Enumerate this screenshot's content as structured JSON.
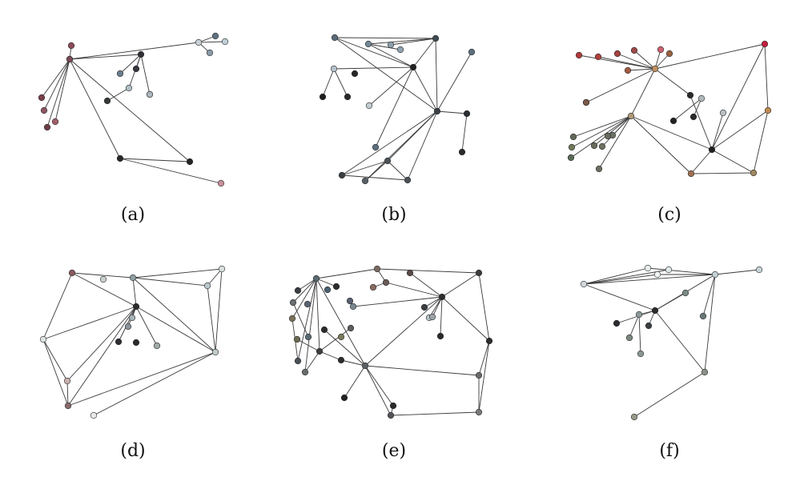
{
  "panels": [
    {
      "id": "a",
      "label": "(a)",
      "nodes": [
        {
          "id": "n1",
          "color": "#8b4a56"
        },
        {
          "id": "n2",
          "color": "#c88a95"
        },
        {
          "id": "n3",
          "color": "#7a3d48"
        },
        {
          "id": "n4",
          "color": "#8d5560"
        },
        {
          "id": "n5",
          "color": "#a0606a"
        },
        {
          "id": "n6",
          "color": "#6d3d44"
        },
        {
          "id": "n7",
          "color": "#303038"
        },
        {
          "id": "n8",
          "color": "#c6d0d6"
        },
        {
          "id": "n9",
          "color": "#8a9aa8"
        },
        {
          "id": "n10",
          "color": "#5e7384"
        },
        {
          "id": "n11",
          "color": "#c0d0d8"
        },
        {
          "id": "n12",
          "color": "#6a7e8e"
        },
        {
          "id": "n13",
          "color": "#383440"
        },
        {
          "id": "n14",
          "color": "#b0c0c8"
        },
        {
          "id": "n15",
          "color": "#8a9aa6"
        },
        {
          "id": "n16",
          "color": "#353838"
        },
        {
          "id": "n17",
          "color": "#aab6bd"
        },
        {
          "id": "n18",
          "color": "#26282a"
        },
        {
          "id": "n19",
          "color": "#222426"
        },
        {
          "id": "n20",
          "color": "#c8909a"
        },
        {
          "id": "n21",
          "color": "#7a4a56"
        }
      ]
    },
    {
      "id": "b",
      "label": "(b)",
      "nodes": [
        {
          "id": "n1",
          "color": "#5a6a78"
        },
        {
          "id": "n2",
          "color": "#708898"
        },
        {
          "id": "n3",
          "color": "#90a4b2"
        },
        {
          "id": "n4",
          "color": "#3e4a52"
        },
        {
          "id": "n5",
          "color": "#5a7080"
        },
        {
          "id": "n6",
          "color": "#202224"
        },
        {
          "id": "n7",
          "color": "#b4c2cc"
        },
        {
          "id": "n8",
          "color": "#202020"
        },
        {
          "id": "n9",
          "color": "#2a2a2a"
        },
        {
          "id": "n10",
          "color": "#262626"
        },
        {
          "id": "n11",
          "color": "#c0ccd2"
        },
        {
          "id": "n12",
          "color": "#8aa0ac"
        },
        {
          "id": "n13",
          "color": "#5a7082"
        },
        {
          "id": "n14",
          "color": "#3a4046"
        },
        {
          "id": "n15",
          "color": "#2a2e32"
        },
        {
          "id": "n16",
          "color": "#282a2c"
        },
        {
          "id": "n17",
          "color": "#4a5258"
        },
        {
          "id": "n18",
          "color": "#5a6066"
        },
        {
          "id": "n19",
          "color": "#3a3e42"
        },
        {
          "id": "n20",
          "color": "#4a5056"
        }
      ]
    },
    {
      "id": "c",
      "label": "(c)",
      "nodes": [
        {
          "id": "n1",
          "color": "#b03a3a"
        },
        {
          "id": "n2",
          "color": "#b0403a"
        },
        {
          "id": "n3",
          "color": "#a84040"
        },
        {
          "id": "n4",
          "color": "#a04848"
        },
        {
          "id": "n5",
          "color": "#a05a40"
        },
        {
          "id": "n6",
          "color": "#d06070"
        },
        {
          "id": "n7",
          "color": "#9a6040"
        },
        {
          "id": "n8",
          "color": "#c09060"
        },
        {
          "id": "n9",
          "color": "#a07848"
        },
        {
          "id": "n10",
          "color": "#7a5848"
        },
        {
          "id": "n11",
          "color": "#b09878"
        },
        {
          "id": "n12",
          "color": "#606858"
        },
        {
          "id": "n13",
          "color": "#707858"
        },
        {
          "id": "n14",
          "color": "#6a6a5a"
        },
        {
          "id": "n15",
          "color": "#707060"
        },
        {
          "id": "n16",
          "color": "#5a6a58"
        },
        {
          "id": "n17",
          "color": "#6a7266"
        },
        {
          "id": "n18",
          "color": "#6a6e60"
        },
        {
          "id": "n19",
          "color": "#2a2a2a"
        },
        {
          "id": "n20",
          "color": "#b0b8bc"
        },
        {
          "id": "n21",
          "color": "#2a2a2a"
        },
        {
          "id": "n22",
          "color": "#b8c0c4"
        },
        {
          "id": "n23",
          "color": "#222222"
        },
        {
          "id": "n24",
          "color": "#202020"
        },
        {
          "id": "n25",
          "color": "#c08a50"
        },
        {
          "id": "n26",
          "color": "#a07050"
        },
        {
          "id": "n27",
          "color": "#a08860"
        },
        {
          "id": "n28",
          "color": "#c42040"
        },
        {
          "id": "n29",
          "color": "#6a6a60"
        }
      ]
    },
    {
      "id": "d",
      "label": "(d)",
      "nodes": [
        {
          "id": "n1",
          "color": "#8a5a5e"
        },
        {
          "id": "n2",
          "color": "#c8d0d0"
        },
        {
          "id": "n3",
          "color": "#90a0a2"
        },
        {
          "id": "n4",
          "color": "#d8e0dc"
        },
        {
          "id": "n5",
          "color": "#b8c8cc"
        },
        {
          "id": "n6",
          "color": "#2a2c2e"
        },
        {
          "id": "n7",
          "color": "#a8b4b8"
        },
        {
          "id": "n8",
          "color": "#8a9498"
        },
        {
          "id": "n9",
          "color": "#2a2c30"
        },
        {
          "id": "n10",
          "color": "#2a2a2c"
        },
        {
          "id": "n11",
          "color": "#a0aaa8"
        },
        {
          "id": "n12",
          "color": "#c0ccc8"
        },
        {
          "id": "n13",
          "color": "#dde4e0"
        },
        {
          "id": "n14",
          "color": "#c8b0b0"
        },
        {
          "id": "n15",
          "color": "#8a6a6a"
        },
        {
          "id": "n16",
          "color": "#e8e8e8"
        }
      ]
    },
    {
      "id": "e",
      "label": "(e)",
      "nodes": [
        {
          "id": "n1",
          "color": "#5a6a72"
        },
        {
          "id": "n2",
          "color": "#3a3e44"
        },
        {
          "id": "n3",
          "color": "#4a6070"
        },
        {
          "id": "n4",
          "color": "#7a6a62"
        },
        {
          "id": "n5",
          "color": "#6a5a58"
        },
        {
          "id": "n6",
          "color": "#5a4a48"
        },
        {
          "id": "n7",
          "color": "#8a6a62"
        },
        {
          "id": "n8",
          "color": "#2a2c2e"
        },
        {
          "id": "n9",
          "color": "#5a6070"
        },
        {
          "id": "n10",
          "color": "#6a6e72"
        },
        {
          "id": "n11",
          "color": "#5a6470"
        },
        {
          "id": "n12",
          "color": "#7a7258"
        },
        {
          "id": "n13",
          "color": "#6a6a52"
        },
        {
          "id": "n14",
          "color": "#5a6a72"
        },
        {
          "id": "n15",
          "color": "#4a5056"
        },
        {
          "id": "n16",
          "color": "#6a6e6a"
        },
        {
          "id": "n17",
          "color": "#3a3e40"
        },
        {
          "id": "n18",
          "color": "#2a2c2c"
        },
        {
          "id": "n19",
          "color": "#7a7a5a"
        },
        {
          "id": "n20",
          "color": "#5a5e60"
        },
        {
          "id": "n21",
          "color": "#2a2c2e"
        },
        {
          "id": "n22",
          "color": "#7a8890"
        },
        {
          "id": "n23",
          "color": "#b8c4c8"
        },
        {
          "id": "n24",
          "color": "#2c2e30"
        },
        {
          "id": "n25",
          "color": "#2a2a2c"
        },
        {
          "id": "n26",
          "color": "#9aa4a8"
        },
        {
          "id": "n27",
          "color": "#3a3e40"
        },
        {
          "id": "n28",
          "color": "#3a3c3e"
        },
        {
          "id": "n29",
          "color": "#2a2c2e"
        },
        {
          "id": "n30",
          "color": "#5a6064"
        },
        {
          "id": "n31",
          "color": "#222224"
        },
        {
          "id": "n32",
          "color": "#2a2a2a"
        },
        {
          "id": "n33",
          "color": "#505458"
        },
        {
          "id": "n34",
          "color": "#6a6a6a"
        },
        {
          "id": "n35",
          "color": "#7a7a7a"
        }
      ]
    },
    {
      "id": "f",
      "label": "(f)",
      "nodes": [
        {
          "id": "n1",
          "color": "#d0d8dc"
        },
        {
          "id": "n2",
          "color": "#e8eef0"
        },
        {
          "id": "n3",
          "color": "#f0f4f4"
        },
        {
          "id": "n4",
          "color": "#e0e8e8"
        },
        {
          "id": "n5",
          "color": "#c4d0d4"
        },
        {
          "id": "n6",
          "color": "#c8d4d8"
        },
        {
          "id": "n7",
          "color": "#2a2c2e"
        },
        {
          "id": "n8",
          "color": "#8a9a98"
        },
        {
          "id": "n9",
          "color": "#2a2c30"
        },
        {
          "id": "n10",
          "color": "#3a3e40"
        },
        {
          "id": "n11",
          "color": "#7a8880"
        },
        {
          "id": "n12",
          "color": "#8a9890"
        },
        {
          "id": "n13",
          "color": "#6a7878"
        },
        {
          "id": "n14",
          "color": "#7a8a86"
        },
        {
          "id": "n15",
          "color": "#8a9288"
        },
        {
          "id": "n16",
          "color": "#9a9a8a"
        }
      ]
    }
  ]
}
